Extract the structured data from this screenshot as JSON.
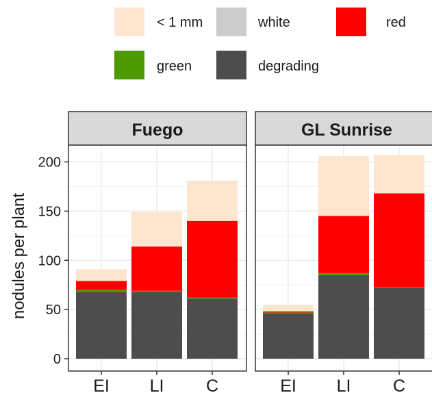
{
  "chart_data": {
    "type": "bar",
    "stacked": true,
    "ylabel": "nodules per plant",
    "xlabel": "",
    "ylim": [
      0,
      215
    ],
    "yticks": [
      0,
      50,
      100,
      150,
      200
    ],
    "grid": true,
    "legend_position": "top",
    "categories": [
      "EI",
      "LI",
      "C"
    ],
    "stack_order": [
      "degrading",
      "green",
      "red",
      "white",
      "< 1 mm"
    ],
    "legend": [
      {
        "label": "< 1 mm",
        "color": "#fde5cf"
      },
      {
        "label": "white",
        "color": "#cccccc"
      },
      {
        "label": "red",
        "color": "#ff0000"
      },
      {
        "label": "green",
        "color": "#4d9900"
      },
      {
        "label": "degrading",
        "color": "#4d4d4d"
      }
    ],
    "panels": [
      {
        "title": "Fuego",
        "series": [
          {
            "name": "degrading",
            "values": [
              68,
              68,
              61
            ]
          },
          {
            "name": "green",
            "values": [
              2,
              1,
              1
            ]
          },
          {
            "name": "red",
            "values": [
              9,
              45,
              78
            ]
          },
          {
            "name": "white",
            "values": [
              0,
              0,
              0
            ]
          },
          {
            "name": "< 1 mm",
            "values": [
              12,
              35,
              41
            ]
          }
        ]
      },
      {
        "title": "GL Sunrise",
        "series": [
          {
            "name": "degrading",
            "values": [
              46,
              85,
              72
            ]
          },
          {
            "name": "green",
            "values": [
              1,
              2,
              1
            ]
          },
          {
            "name": "red",
            "values": [
              1,
              58,
              95
            ]
          },
          {
            "name": "white",
            "values": [
              0,
              0,
              0
            ]
          },
          {
            "name": "< 1 mm",
            "values": [
              7,
              61,
              39
            ]
          }
        ]
      }
    ]
  }
}
